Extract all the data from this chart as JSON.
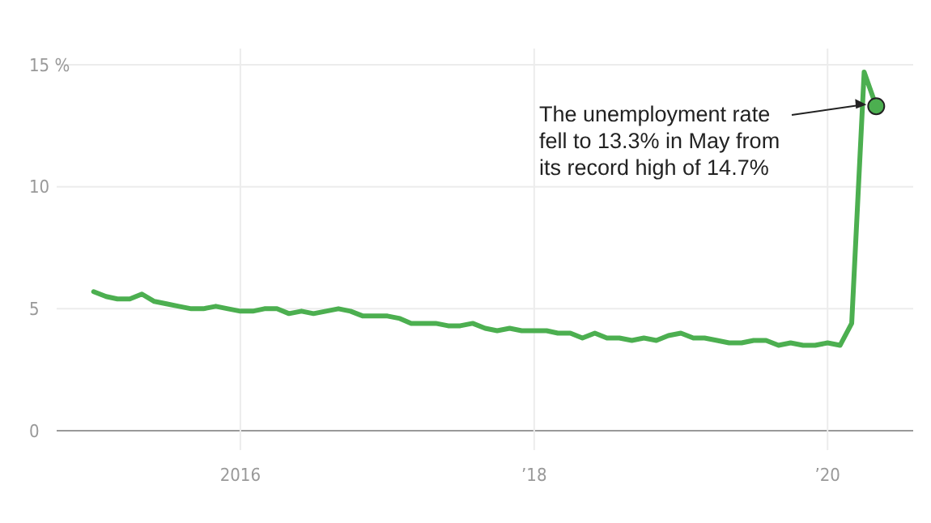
{
  "chart_data": {
    "type": "line",
    "x": [
      "2015-01",
      "2015-02",
      "2015-03",
      "2015-04",
      "2015-05",
      "2015-06",
      "2015-07",
      "2015-08",
      "2015-09",
      "2015-10",
      "2015-11",
      "2015-12",
      "2016-01",
      "2016-02",
      "2016-03",
      "2016-04",
      "2016-05",
      "2016-06",
      "2016-07",
      "2016-08",
      "2016-09",
      "2016-10",
      "2016-11",
      "2016-12",
      "2017-01",
      "2017-02",
      "2017-03",
      "2017-04",
      "2017-05",
      "2017-06",
      "2017-07",
      "2017-08",
      "2017-09",
      "2017-10",
      "2017-11",
      "2017-12",
      "2018-01",
      "2018-02",
      "2018-03",
      "2018-04",
      "2018-05",
      "2018-06",
      "2018-07",
      "2018-08",
      "2018-09",
      "2018-10",
      "2018-11",
      "2018-12",
      "2019-01",
      "2019-02",
      "2019-03",
      "2019-04",
      "2019-05",
      "2019-06",
      "2019-07",
      "2019-08",
      "2019-09",
      "2019-10",
      "2019-11",
      "2019-12",
      "2020-01",
      "2020-02",
      "2020-03",
      "2020-04",
      "2020-05"
    ],
    "series": [
      {
        "color": "#4caf50",
        "values": [
          5.7,
          5.5,
          5.4,
          5.4,
          5.6,
          5.3,
          5.2,
          5.1,
          5.0,
          5.0,
          5.1,
          5.0,
          4.9,
          4.9,
          5.0,
          5.0,
          4.8,
          4.9,
          4.8,
          4.9,
          5.0,
          4.9,
          4.7,
          4.7,
          4.7,
          4.6,
          4.4,
          4.4,
          4.4,
          4.3,
          4.3,
          4.4,
          4.2,
          4.1,
          4.2,
          4.1,
          4.1,
          4.1,
          4.0,
          4.0,
          3.8,
          4.0,
          3.8,
          3.8,
          3.7,
          3.8,
          3.7,
          3.9,
          4.0,
          3.8,
          3.8,
          3.7,
          3.6,
          3.6,
          3.7,
          3.7,
          3.5,
          3.6,
          3.5,
          3.5,
          3.6,
          3.5,
          4.4,
          14.7,
          13.3
        ]
      }
    ],
    "xlim": [
      "2014-10",
      "2020-08"
    ],
    "xticks": [
      {
        "value": "2016-01",
        "label": "2016"
      },
      {
        "value": "2018-01",
        "label": "’18"
      },
      {
        "value": "2020-01",
        "label": "’20"
      }
    ],
    "ylim": [
      0,
      15
    ],
    "yticks": [
      0,
      5,
      10,
      {
        "value": 15,
        "label": "15 %"
      }
    ],
    "grid": true,
    "annotations": [
      {
        "text": "The unemployment rate fell to 13.3% in May from its record high of 14.7%",
        "x": "2020-05",
        "y": 13.3
      }
    ]
  }
}
